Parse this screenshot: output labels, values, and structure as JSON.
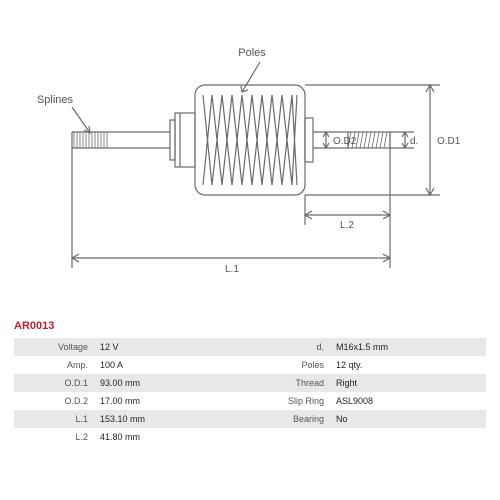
{
  "part_number": "AR0013",
  "part_number_color": "#bb2233",
  "diagram": {
    "labels": {
      "splines": "Splines",
      "poles": "Poles",
      "od1": "O.D1",
      "od2": "O.D2",
      "l1": "L.1",
      "l2": "L.2",
      "d": "d."
    },
    "stroke_color": "#6a6a6a",
    "dim_color": "#6a6a6a",
    "label_fontsize": 11,
    "dim_fontsize": 10
  },
  "specs_left": [
    {
      "label": "Voltage",
      "value": "12 V"
    },
    {
      "label": "Amp.",
      "value": "100 A"
    },
    {
      "label": "O.D.1",
      "value": "93.00 mm"
    },
    {
      "label": "O.D.2",
      "value": "17.00 mm"
    },
    {
      "label": "L.1",
      "value": "153.10 mm"
    },
    {
      "label": "L.2",
      "value": "41.80 mm"
    }
  ],
  "specs_right": [
    {
      "label": "d.",
      "value": "M16x1.5 mm"
    },
    {
      "label": "Poles",
      "value": "12 qty."
    },
    {
      "label": "Thread",
      "value": "Right"
    },
    {
      "label": "Slip Ring",
      "value": "ASL9008"
    },
    {
      "label": "Bearing",
      "value": "No"
    },
    {
      "label": "",
      "value": ""
    }
  ],
  "table_colors": {
    "odd_bg": "#e8e8e8",
    "even_bg": "#ffffff",
    "label_color": "#555555",
    "value_color": "#222222"
  }
}
